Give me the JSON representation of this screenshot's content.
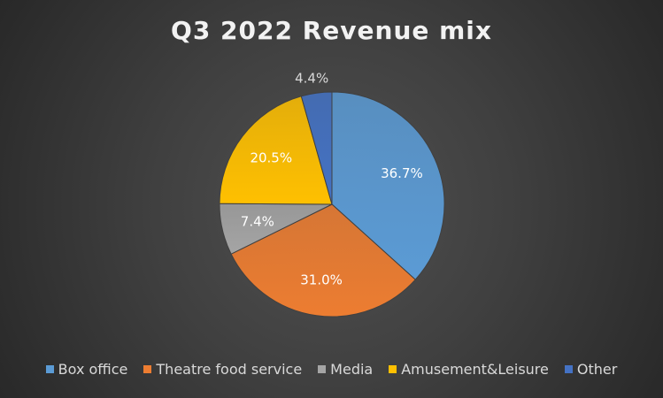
{
  "chart_data": {
    "type": "pie",
    "title": "Q3 2022 Revenue mix",
    "categories": [
      "Box office",
      "Theatre food service",
      "Media",
      "Amusement&Leisure",
      "Other"
    ],
    "values": [
      36.7,
      31.0,
      7.4,
      20.5,
      4.4
    ],
    "labels": [
      "36.7%",
      "31.0%",
      "7.4%",
      "20.5%",
      "4.4%"
    ],
    "colors": [
      "#5B9BD5",
      "#ED7D31",
      "#A5A5A5",
      "#FFC000",
      "#4472C4"
    ],
    "start_angle_deg": 0,
    "direction": "clockwise",
    "legend_position": "bottom"
  }
}
